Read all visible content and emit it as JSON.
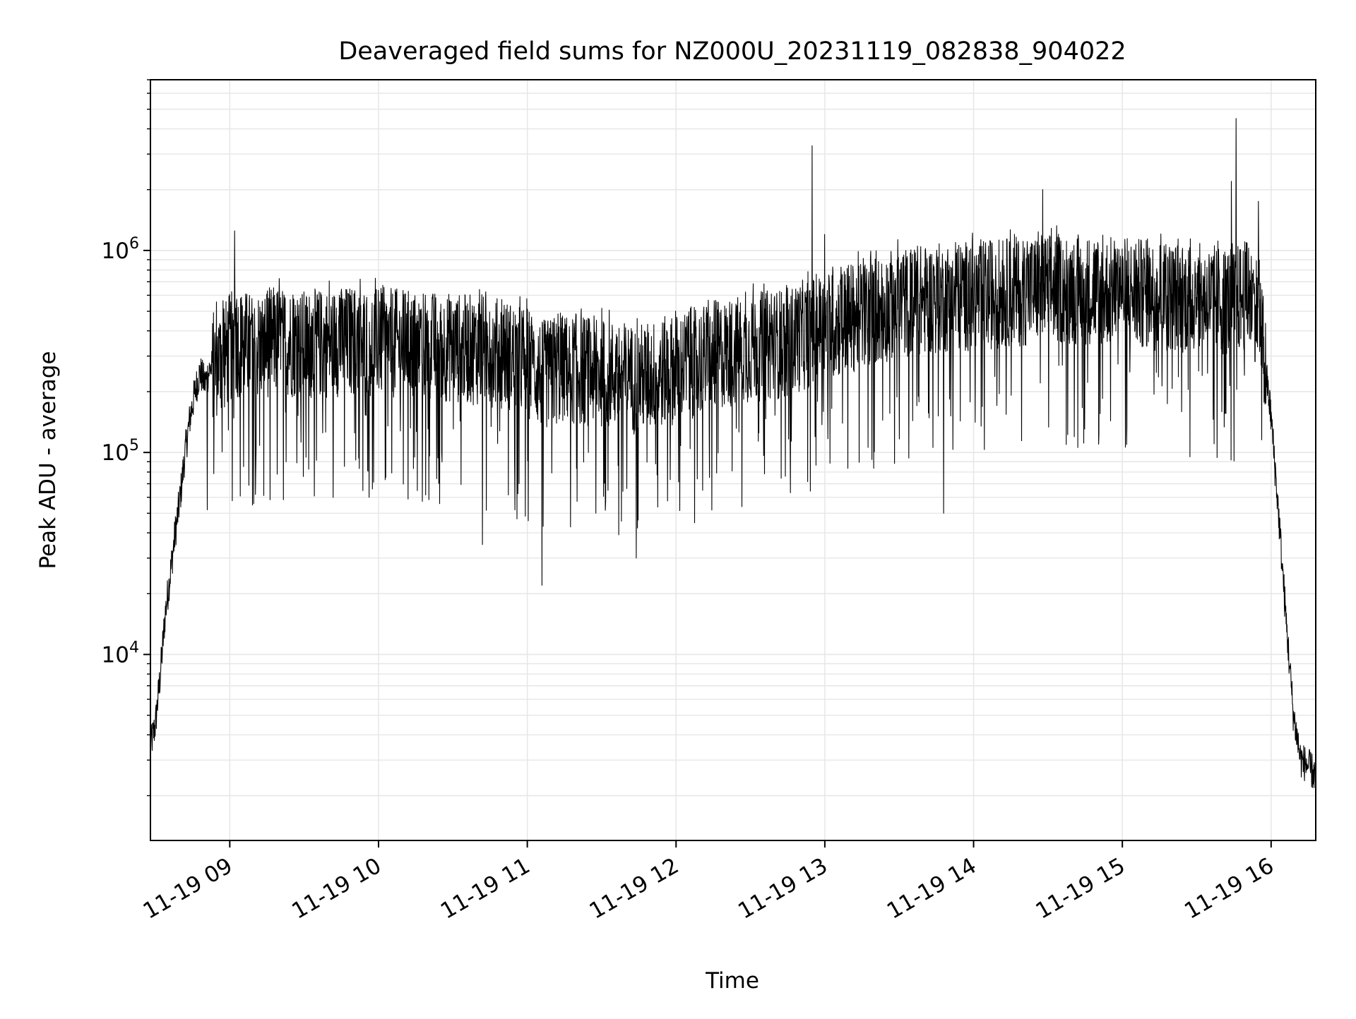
{
  "chart_data": {
    "type": "line",
    "title": "Deaveraged field sums for NZ000U_20231119_082838_904022",
    "xlabel": "Time",
    "ylabel": "Peak ADU - average",
    "x_scale": "time",
    "y_scale": "log",
    "xlim": [
      "2023-11-19 08:28",
      "2023-11-19 16:18"
    ],
    "ylim": [
      1200,
      7000000
    ],
    "x_tick_labels": [
      "11-19 09",
      "11-19 10",
      "11-19 11",
      "11-19 12",
      "11-19 13",
      "11-19 14",
      "11-19 15",
      "11-19 16"
    ],
    "x_ticks": [
      "2023-11-19 09:00",
      "2023-11-19 10:00",
      "2023-11-19 11:00",
      "2023-11-19 12:00",
      "2023-11-19 13:00",
      "2023-11-19 14:00",
      "2023-11-19 15:00",
      "2023-11-19 16:00"
    ],
    "y_tick_labels": [
      {
        "base": "10",
        "exp": "4"
      },
      {
        "base": "10",
        "exp": "5"
      },
      {
        "base": "10",
        "exp": "6"
      }
    ],
    "y_ticks": [
      10000,
      100000,
      1000000
    ],
    "grid": true,
    "colors": {
      "line": "#000000",
      "grid": "#e6e6e6",
      "axes": "#000000"
    },
    "series": [
      {
        "x": [
          "2023-11-19 08:28",
          "2023-11-19 08:30",
          "2023-11-19 08:32",
          "2023-11-19 08:34",
          "2023-11-19 08:36",
          "2023-11-19 08:38",
          "2023-11-19 08:40",
          "2023-11-19 08:42",
          "2023-11-19 08:44",
          "2023-11-19 08:46",
          "2023-11-19 08:48",
          "2023-11-19 08:50",
          "2023-11-19 08:52",
          "2023-11-19 08:55",
          "2023-11-19 08:58",
          "2023-11-19 09:00",
          "2023-11-19 09:03",
          "2023-11-19 09:06",
          "2023-11-19 09:10",
          "2023-11-19 09:15",
          "2023-11-19 09:20",
          "2023-11-19 09:30",
          "2023-11-19 09:40",
          "2023-11-19 09:50",
          "2023-11-19 10:00",
          "2023-11-19 10:15",
          "2023-11-19 10:30",
          "2023-11-19 10:42",
          "2023-11-19 10:50",
          "2023-11-19 11:00",
          "2023-11-19 11:06",
          "2023-11-19 11:15",
          "2023-11-19 11:30",
          "2023-11-19 11:44",
          "2023-11-19 12:00",
          "2023-11-19 12:15",
          "2023-11-19 12:30",
          "2023-11-19 12:45",
          "2023-11-19 12:55",
          "2023-11-19 13:00",
          "2023-11-19 13:15",
          "2023-11-19 13:30",
          "2023-11-19 13:45",
          "2023-11-19 14:00",
          "2023-11-19 14:15",
          "2023-11-19 14:28",
          "2023-11-19 14:45",
          "2023-11-19 15:00",
          "2023-11-19 15:15",
          "2023-11-19 15:30",
          "2023-11-19 15:45",
          "2023-11-19 15:50",
          "2023-11-19 15:55",
          "2023-11-19 16:00",
          "2023-11-19 16:03",
          "2023-11-19 16:06",
          "2023-11-19 16:09",
          "2023-11-19 16:12",
          "2023-11-19 16:15",
          "2023-11-19 16:18"
        ],
        "y": [
          3500,
          4500,
          8000,
          16000,
          25000,
          40000,
          60000,
          100000,
          150000,
          200000,
          250000,
          220000,
          260000,
          280000,
          300000,
          330000,
          350000,
          340000,
          330000,
          350000,
          360000,
          340000,
          350000,
          360000,
          350000,
          340000,
          330000,
          320000,
          310000,
          280000,
          240000,
          260000,
          250000,
          230000,
          260000,
          300000,
          330000,
          350000,
          400000,
          420000,
          480000,
          550000,
          580000,
          600000,
          620000,
          650000,
          640000,
          620000,
          600000,
          580000,
          560000,
          600000,
          500000,
          150000,
          50000,
          15000,
          5000,
          3000,
          2800,
          2500
        ],
        "spikes_high": [
          {
            "x": "2023-11-19 09:02",
            "y": 1250000
          },
          {
            "x": "2023-11-19 12:55",
            "y": 3300000
          },
          {
            "x": "2023-11-19 13:00",
            "y": 1200000
          },
          {
            "x": "2023-11-19 14:28",
            "y": 2000000
          },
          {
            "x": "2023-11-19 15:46",
            "y": 4500000
          },
          {
            "x": "2023-11-19 15:44",
            "y": 2200000
          },
          {
            "x": "2023-11-19 15:55",
            "y": 1750000
          }
        ],
        "spikes_low": [
          {
            "x": "2023-11-19 10:42",
            "y": 35000
          },
          {
            "x": "2023-11-19 11:06",
            "y": 22000
          },
          {
            "x": "2023-11-19 11:44",
            "y": 30000
          },
          {
            "x": "2023-11-19 13:48",
            "y": 50000
          },
          {
            "x": "2023-11-19 08:51",
            "y": 52000
          }
        ]
      }
    ]
  }
}
